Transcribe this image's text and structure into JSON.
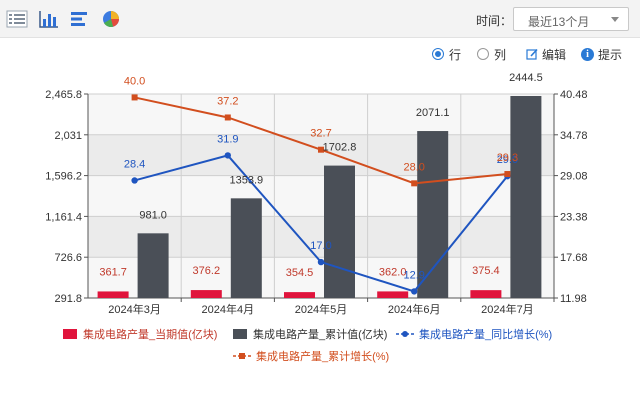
{
  "toolbar": {
    "icons": [
      "list-icon",
      "bar-chart-icon",
      "horizontal-bar-icon",
      "pie-chart-icon"
    ],
    "time_label": "时间：",
    "time_select_value": "最近13个月"
  },
  "options": {
    "row_label": "行",
    "col_label": "列",
    "edit_label": "编辑",
    "tip_label": "提示",
    "selected": "row"
  },
  "colors": {
    "current_bar": "#e0143c",
    "cumulative_bar": "#4a4f57",
    "yoy_line": "#1f55c0",
    "cum_growth_line": "#d24e1e",
    "plot_bg": "#ebebeb"
  },
  "chart_data": {
    "type": "bar",
    "categories": [
      "2024年3月",
      "2024年4月",
      "2024年5月",
      "2024年6月",
      "2024年7月"
    ],
    "series": [
      {
        "name": "集成电路产量_当期值(亿块)",
        "type": "bar",
        "axis": "left",
        "values": [
          361.7,
          376.2,
          354.5,
          362.0,
          375.4
        ],
        "labels": [
          "361.7",
          "376.2",
          "354.5",
          "362.0",
          "375.4"
        ]
      },
      {
        "name": "集成电路产量_累计值(亿块)",
        "type": "bar",
        "axis": "left",
        "values": [
          981.0,
          1353.9,
          1702.8,
          2071.1,
          2444.5
        ],
        "labels": [
          "981.0",
          "1353.9",
          "1702.8",
          "2071.1",
          "2444.5"
        ]
      },
      {
        "name": "集成电路产量_同比增长(%)",
        "type": "line",
        "axis": "right",
        "values": [
          28.4,
          31.9,
          17.0,
          12.9,
          29.0
        ],
        "labels": [
          "28.4",
          "31.9",
          "17.0",
          "12.9",
          "29.0"
        ]
      },
      {
        "name": "集成电路产量_累计增长(%)",
        "type": "line",
        "axis": "right",
        "values": [
          40.0,
          37.2,
          32.7,
          28.0,
          29.3
        ],
        "labels": [
          "40.0",
          "37.2",
          "32.7",
          "28.0",
          "29.3"
        ]
      }
    ],
    "y_left": {
      "min": 291.8,
      "max": 2465.8,
      "ticks": [
        291.8,
        726.6,
        1161.4,
        1596.2,
        2031,
        2465.8
      ],
      "tick_labels": [
        "291.8",
        "726.6",
        "1,161.4",
        "1,596.2",
        "2,031",
        "2,465.8"
      ]
    },
    "y_right": {
      "min": 11.98,
      "max": 40.48,
      "ticks": [
        11.98,
        17.68,
        23.38,
        29.08,
        34.78,
        40.48
      ],
      "tick_labels": [
        "11.98",
        "17.68",
        "23.38",
        "29.08",
        "34.78",
        "40.48"
      ]
    },
    "grid": true,
    "legend_position": "bottom"
  }
}
